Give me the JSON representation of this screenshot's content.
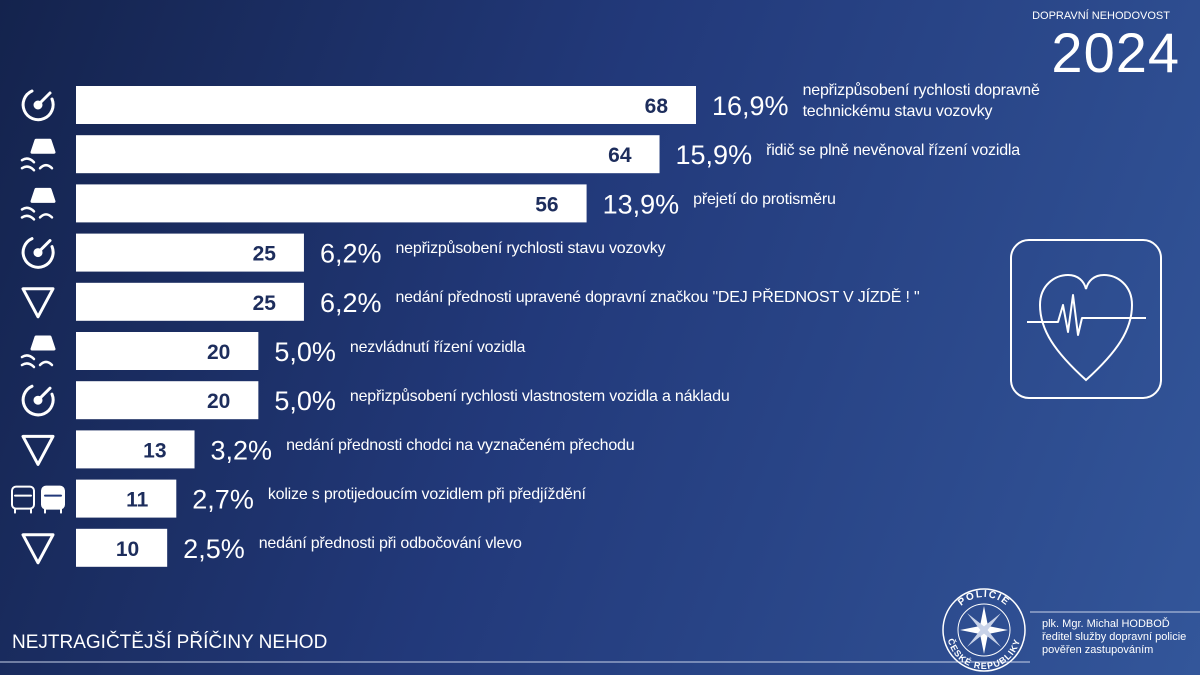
{
  "header": {
    "label": "DOPRAVNÍ NEHODOVOST",
    "year": "2024"
  },
  "chart_data": {
    "type": "bar",
    "orientation": "horizontal",
    "title": "NEJTRAGIČTĚJŠÍ PŘÍČINY NEHOD",
    "categories": [
      "nepřizpůsobení rychlosti dopravně technickému stavu vozovky",
      "řidič se plně nevěnoval řízení vozidla",
      "přejetí do protisměru",
      "nepřizpůsobení rychlosti stavu vozovky",
      "nedání přednosti upravené dopravní značkou \"DEJ PŘEDNOST V JÍZDĚ ! \"",
      "nezvládnutí řízení vozidla",
      "nepřizpůsobení rychlosti vlastnostem vozidla a nákladu",
      "nedání přednosti chodci na vyznačeném přechodu",
      "kolize s protijedoucím vozidlem při předjíždění",
      "nedání přednosti při odbočování vlevo"
    ],
    "values": [
      68,
      64,
      56,
      25,
      25,
      20,
      20,
      13,
      11,
      10
    ],
    "percent_labels": [
      "16,9%",
      "15,9%",
      "13,9%",
      "6,2%",
      "6,2%",
      "5,0%",
      "5,0%",
      "3,2%",
      "2,7%",
      "2,5%"
    ],
    "color": "#ffffff"
  },
  "logo": {
    "top": "POLICIE",
    "bottom": "ČESKÉ REPUBLIKY"
  },
  "signature": [
    "plk. Mgr. Michal HODBOĎ",
    "ředitel služby dopravní policie",
    "pověřen zastupováním"
  ]
}
